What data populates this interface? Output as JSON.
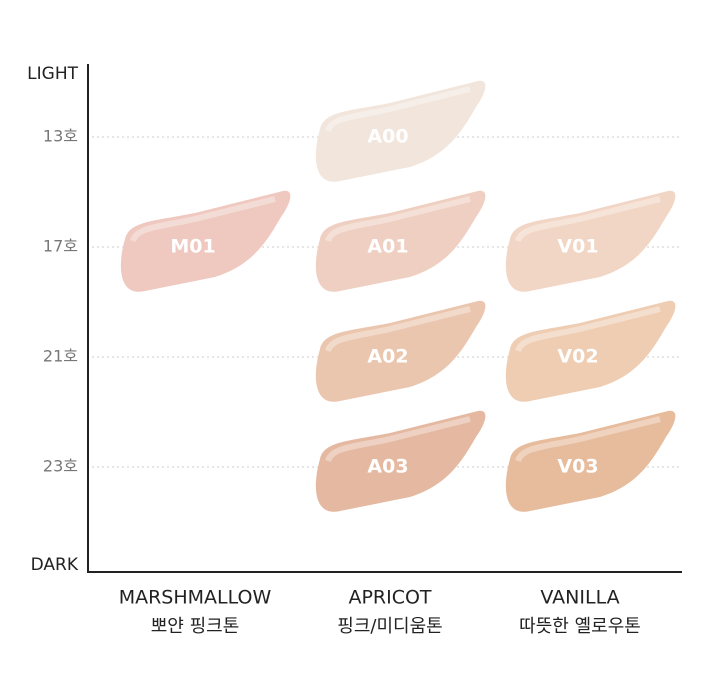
{
  "axis": {
    "top": "LIGHT",
    "bottom": "DARK"
  },
  "rows": [
    "13호",
    "17호",
    "21호",
    "23호"
  ],
  "columns": [
    {
      "name": "MARSHMALLOW",
      "subtitle": "뽀얀 핑크톤",
      "swatches": [
        null,
        {
          "label": "M01",
          "color": "#efc9c0"
        },
        null,
        null
      ]
    },
    {
      "name": "APRICOT",
      "subtitle": "핑크/미디움톤",
      "swatches": [
        {
          "label": "A00",
          "color": "#f1e5dc"
        },
        {
          "label": "A01",
          "color": "#efcfc1"
        },
        {
          "label": "A02",
          "color": "#ebc6af"
        },
        {
          "label": "A03",
          "color": "#e5b9a1"
        }
      ]
    },
    {
      "name": "VANILLA",
      "subtitle": "따뜻한 옐로우톤",
      "swatches": [
        null,
        {
          "label": "V01",
          "color": "#f2d6c5"
        },
        {
          "label": "V02",
          "color": "#eecdb3"
        },
        {
          "label": "V03",
          "color": "#e6bc9d"
        }
      ]
    }
  ]
}
